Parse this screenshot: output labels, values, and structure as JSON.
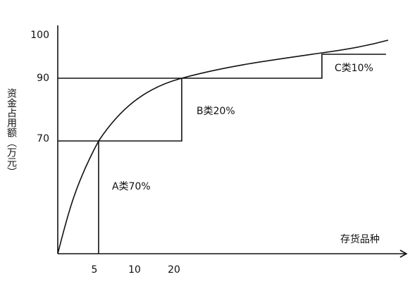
{
  "axes": {
    "y_label": "资金占用额（万元）",
    "x_label": "存货品种",
    "y_ticks": [
      "100",
      "90",
      "70"
    ],
    "x_ticks": [
      "5",
      "10",
      "20"
    ]
  },
  "classes": [
    "A类70%",
    "B类20%",
    "C类10%"
  ]
}
